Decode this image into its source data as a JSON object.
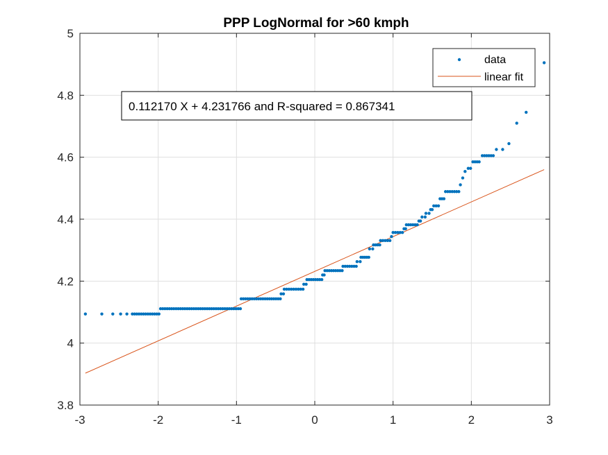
{
  "chart_data": {
    "type": "scatter",
    "title": "PPP LogNormal for >60 kmph",
    "xlabel": "",
    "ylabel": "",
    "xlim": [
      -3,
      3
    ],
    "ylim": [
      3.8,
      5
    ],
    "xticks": [
      "-3",
      "-2",
      "-1",
      "0",
      "1",
      "2",
      "3"
    ],
    "yticks": [
      "3.8",
      "4",
      "4.2",
      "4.4",
      "4.6",
      "4.8",
      "5"
    ],
    "grid": true,
    "legend_position": "top-right",
    "annotation": "0.112170 X + 4.231766 and R-squared = 0.867341",
    "series": [
      {
        "name": "data",
        "kind": "points",
        "color": "#0072BD",
        "steps": [
          {
            "x_from": -2.93,
            "x_to": -2.93,
            "y": 4.094
          },
          {
            "x_from": -2.72,
            "x_to": -2.72,
            "y": 4.094
          },
          {
            "x_from": -2.58,
            "x_to": -2.58,
            "y": 4.094
          },
          {
            "x_from": -2.48,
            "x_to": -2.48,
            "y": 4.094
          },
          {
            "x_from": -2.4,
            "x_to": -2.4,
            "y": 4.094
          },
          {
            "x_from": -2.33,
            "x_to": -1.99,
            "y": 4.094
          },
          {
            "x_from": -1.97,
            "x_to": -0.95,
            "y": 4.111
          },
          {
            "x_from": -0.94,
            "x_to": -0.44,
            "y": 4.143
          },
          {
            "x_from": -0.43,
            "x_to": -0.4,
            "y": 4.159
          },
          {
            "x_from": -0.39,
            "x_to": -0.15,
            "y": 4.174
          },
          {
            "x_from": -0.14,
            "x_to": -0.11,
            "y": 4.19
          },
          {
            "x_from": -0.1,
            "x_to": 0.09,
            "y": 4.205
          },
          {
            "x_from": 0.1,
            "x_to": 0.12,
            "y": 4.22
          },
          {
            "x_from": 0.13,
            "x_to": 0.35,
            "y": 4.234
          },
          {
            "x_from": 0.36,
            "x_to": 0.53,
            "y": 4.248
          },
          {
            "x_from": 0.54,
            "x_to": 0.58,
            "y": 4.263
          },
          {
            "x_from": 0.59,
            "x_to": 0.69,
            "y": 4.277
          },
          {
            "x_from": 0.7,
            "x_to": 0.74,
            "y": 4.304
          },
          {
            "x_from": 0.75,
            "x_to": 0.83,
            "y": 4.317
          },
          {
            "x_from": 0.84,
            "x_to": 0.96,
            "y": 4.331
          },
          {
            "x_from": 0.98,
            "x_to": 0.98,
            "y": 4.344
          },
          {
            "x_from": 1.0,
            "x_to": 1.12,
            "y": 4.357
          },
          {
            "x_from": 1.14,
            "x_to": 1.16,
            "y": 4.369
          },
          {
            "x_from": 1.17,
            "x_to": 1.31,
            "y": 4.382
          },
          {
            "x_from": 1.33,
            "x_to": 1.35,
            "y": 4.394
          },
          {
            "x_from": 1.37,
            "x_to": 1.41,
            "y": 4.407
          },
          {
            "x_from": 1.42,
            "x_to": 1.46,
            "y": 4.419
          },
          {
            "x_from": 1.48,
            "x_to": 1.5,
            "y": 4.431
          },
          {
            "x_from": 1.52,
            "x_to": 1.58,
            "y": 4.443
          },
          {
            "x_from": 1.6,
            "x_to": 1.65,
            "y": 4.466
          },
          {
            "x_from": 1.67,
            "x_to": 1.84,
            "y": 4.489
          },
          {
            "x_from": 1.86,
            "x_to": 1.86,
            "y": 4.511
          },
          {
            "x_from": 1.89,
            "x_to": 1.89,
            "y": 4.533
          },
          {
            "x_from": 1.92,
            "x_to": 1.93,
            "y": 4.554
          },
          {
            "x_from": 1.96,
            "x_to": 1.99,
            "y": 4.564
          },
          {
            "x_from": 2.02,
            "x_to": 2.1,
            "y": 4.585
          },
          {
            "x_from": 2.14,
            "x_to": 2.28,
            "y": 4.605
          },
          {
            "x_from": 2.32,
            "x_to": 2.32,
            "y": 4.625
          },
          {
            "x_from": 2.4,
            "x_to": 2.4,
            "y": 4.625
          },
          {
            "x_from": 2.48,
            "x_to": 2.48,
            "y": 4.644
          },
          {
            "x_from": 2.58,
            "x_to": 2.58,
            "y": 4.71
          },
          {
            "x_from": 2.7,
            "x_to": 2.7,
            "y": 4.745
          },
          {
            "x_from": 2.93,
            "x_to": 2.93,
            "y": 4.905
          }
        ]
      },
      {
        "name": "linear fit",
        "kind": "line",
        "color": "#D95319",
        "x": [
          -2.93,
          2.93
        ],
        "y": [
          3.903,
          4.56
        ]
      }
    ]
  }
}
